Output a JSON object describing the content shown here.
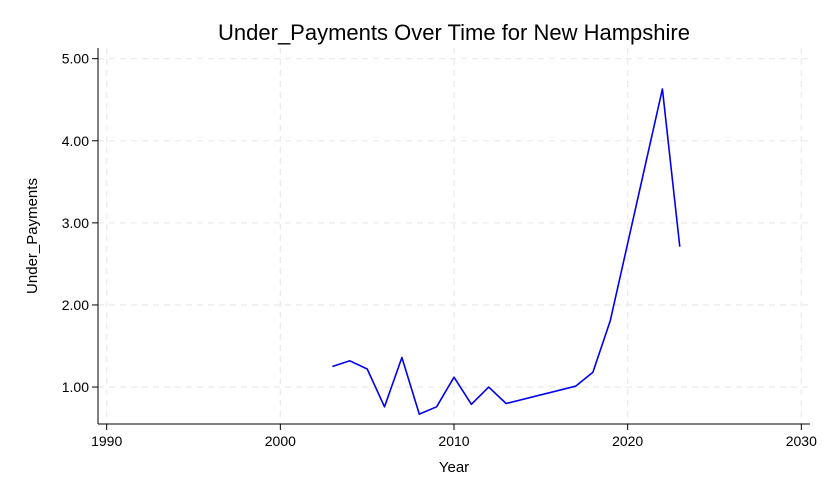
{
  "chart_data": {
    "type": "line",
    "title": "Under_Payments Over Time for New Hampshire",
    "xlabel": "Year",
    "ylabel": "Under_Payments",
    "xlim": [
      1989.5,
      2030.5
    ],
    "ylim": [
      0.55,
      5.13
    ],
    "x_ticks": [
      1990,
      2000,
      2010,
      2020,
      2030
    ],
    "x_tick_labels": [
      "1990",
      "2000",
      "2010",
      "2020",
      "2030"
    ],
    "y_ticks": [
      1,
      2,
      3,
      4,
      5
    ],
    "y_tick_labels": [
      "1.00",
      "2.00",
      "3.00",
      "4.00",
      "5.00"
    ],
    "grid": true,
    "legend": "none",
    "series": [
      {
        "color": "#0000ee",
        "x": [
          2003,
          2004,
          2005,
          2006,
          2007,
          2008,
          2009,
          2010,
          2011,
          2012,
          2013,
          2017,
          2018,
          2019,
          2022,
          2023
        ],
        "y": [
          1.25,
          1.32,
          1.22,
          0.76,
          1.36,
          0.67,
          0.76,
          1.12,
          0.79,
          1.0,
          0.8,
          1.01,
          1.18,
          1.81,
          4.63,
          2.71
        ]
      }
    ]
  }
}
